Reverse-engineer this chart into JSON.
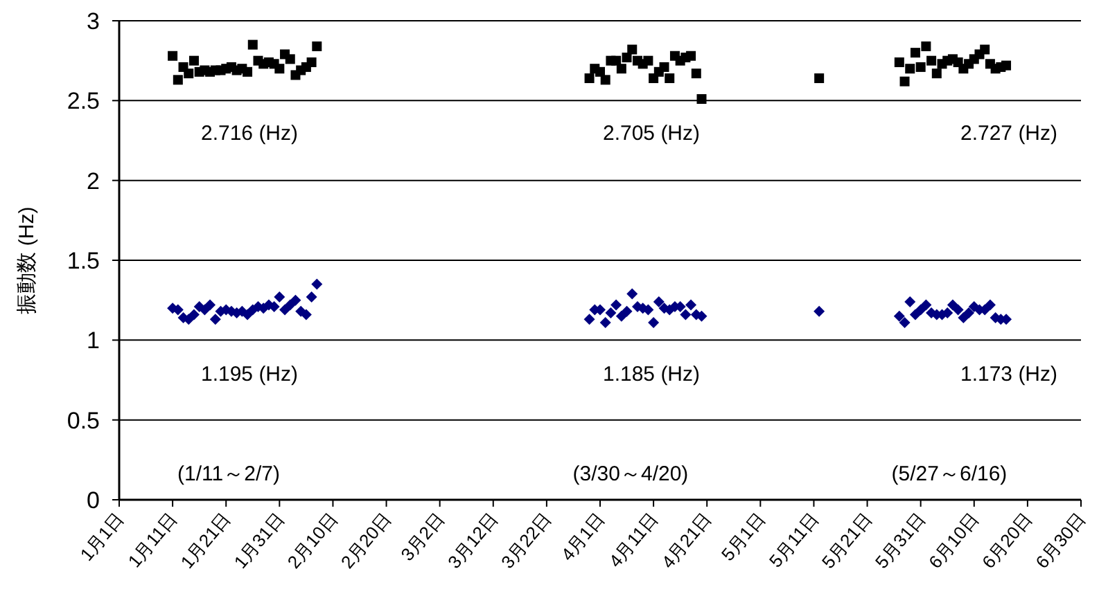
{
  "chart_data": {
    "type": "scatter",
    "ylabel": "振動数 (Hz)",
    "x": [
      "--01-11",
      "--01-12",
      "--01-13",
      "--01-14",
      "--01-15",
      "--01-16",
      "--01-17",
      "--01-18",
      "--01-19",
      "--01-20",
      "--01-21",
      "--01-22",
      "--01-23",
      "--01-24",
      "--01-25",
      "--01-26",
      "--01-27",
      "--01-28",
      "--01-29",
      "--01-30",
      "--01-31",
      "--02-01",
      "--02-02",
      "--02-03",
      "--02-04",
      "--02-05",
      "--02-06",
      "--02-07",
      "--03-30",
      "--03-31",
      "--04-01",
      "--04-02",
      "--04-03",
      "--04-04",
      "--04-05",
      "--04-06",
      "--04-07",
      "--04-08",
      "--04-09",
      "--04-10",
      "--04-11",
      "--04-12",
      "--04-13",
      "--04-14",
      "--04-15",
      "--04-16",
      "--04-17",
      "--04-18",
      "--04-19",
      "--04-20",
      "--05-12",
      "--05-27",
      "--05-28",
      "--05-29",
      "--05-30",
      "--05-31",
      "--06-01",
      "--06-02",
      "--06-03",
      "--06-04",
      "--06-05",
      "--06-06",
      "--06-07",
      "--06-08",
      "--06-09",
      "--06-10",
      "--06-11",
      "--06-12",
      "--06-13",
      "--06-14",
      "--06-15",
      "--06-16"
    ],
    "series": [
      {
        "color": "#000000",
        "marker": "square",
        "values": [
          2.78,
          2.63,
          2.71,
          2.67,
          2.75,
          2.68,
          2.69,
          2.68,
          2.69,
          2.69,
          2.7,
          2.71,
          2.69,
          2.7,
          2.68,
          2.85,
          2.75,
          2.73,
          2.74,
          2.73,
          2.7,
          2.79,
          2.76,
          2.66,
          2.69,
          2.71,
          2.74,
          2.84,
          2.64,
          2.7,
          2.68,
          2.63,
          2.75,
          2.75,
          2.7,
          2.77,
          2.82,
          2.75,
          2.73,
          2.75,
          2.64,
          2.68,
          2.71,
          2.64,
          2.78,
          2.75,
          2.77,
          2.78,
          2.67,
          2.51,
          2.64,
          2.74,
          2.62,
          2.7,
          2.8,
          2.71,
          2.84,
          2.75,
          2.67,
          2.73,
          2.75,
          2.76,
          2.74,
          2.7,
          2.73,
          2.76,
          2.79,
          2.82,
          2.73,
          2.7,
          2.71,
          2.72
        ]
      },
      {
        "color": "#000080",
        "marker": "diamond",
        "values": [
          1.2,
          1.19,
          1.14,
          1.13,
          1.16,
          1.21,
          1.19,
          1.22,
          1.13,
          1.18,
          1.19,
          1.18,
          1.17,
          1.18,
          1.16,
          1.19,
          1.21,
          1.2,
          1.22,
          1.21,
          1.27,
          1.19,
          1.22,
          1.25,
          1.18,
          1.16,
          1.27,
          1.35,
          1.13,
          1.19,
          1.19,
          1.11,
          1.17,
          1.22,
          1.15,
          1.18,
          1.29,
          1.21,
          1.2,
          1.19,
          1.11,
          1.24,
          1.2,
          1.19,
          1.21,
          1.21,
          1.16,
          1.22,
          1.16,
          1.15,
          1.18,
          1.15,
          1.11,
          1.24,
          1.16,
          1.19,
          1.22,
          1.17,
          1.16,
          1.16,
          1.17,
          1.22,
          1.19,
          1.14,
          1.17,
          1.21,
          1.19,
          1.19,
          1.22,
          1.14,
          1.13,
          1.13
        ]
      }
    ],
    "xlim": [
      "--01-01",
      "--06-30"
    ],
    "xticks": [
      {
        "value": "--01-01",
        "label": "1月1日"
      },
      {
        "value": "--01-11",
        "label": "1月11日"
      },
      {
        "value": "--01-21",
        "label": "1月21日"
      },
      {
        "value": "--01-31",
        "label": "1月31日"
      },
      {
        "value": "--02-10",
        "label": "2月10日"
      },
      {
        "value": "--02-20",
        "label": "2月20日"
      },
      {
        "value": "--03-02",
        "label": "3月2日"
      },
      {
        "value": "--03-12",
        "label": "3月12日"
      },
      {
        "value": "--03-22",
        "label": "3月22日"
      },
      {
        "value": "--04-01",
        "label": "4月1日"
      },
      {
        "value": "--04-11",
        "label": "4月11日"
      },
      {
        "value": "--04-21",
        "label": "4月21日"
      },
      {
        "value": "--05-01",
        "label": "5月1日"
      },
      {
        "value": "--05-11",
        "label": "5月11日"
      },
      {
        "value": "--05-21",
        "label": "5月21日"
      },
      {
        "value": "--05-31",
        "label": "5月31日"
      },
      {
        "value": "--06-10",
        "label": "6月10日"
      },
      {
        "value": "--06-20",
        "label": "6月20日"
      },
      {
        "value": "--06-30",
        "label": "6月30日"
      }
    ],
    "ylim": [
      0,
      3
    ],
    "yticks": [
      0,
      0.5,
      1,
      1.5,
      2,
      2.5,
      3
    ],
    "grid": "y",
    "annotations": [
      "2.716 (Hz)",
      "2.705 (Hz)",
      "2.727 (Hz)",
      "1.195 (Hz)",
      "1.185 (Hz)",
      "1.173 (Hz)",
      "(1/11～2/7)",
      "(3/30～4/20)",
      "(5/27～6/16)"
    ]
  }
}
